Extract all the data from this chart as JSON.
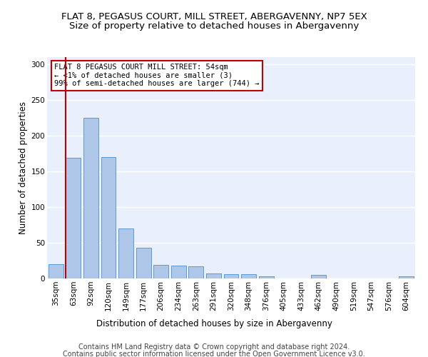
{
  "title": "FLAT 8, PEGASUS COURT, MILL STREET, ABERGAVENNY, NP7 5EX",
  "subtitle": "Size of property relative to detached houses in Abergavenny",
  "xlabel": "Distribution of detached houses by size in Abergavenny",
  "ylabel": "Number of detached properties",
  "categories": [
    "35sqm",
    "63sqm",
    "92sqm",
    "120sqm",
    "149sqm",
    "177sqm",
    "206sqm",
    "234sqm",
    "263sqm",
    "291sqm",
    "320sqm",
    "348sqm",
    "376sqm",
    "405sqm",
    "433sqm",
    "462sqm",
    "490sqm",
    "519sqm",
    "547sqm",
    "576sqm",
    "604sqm"
  ],
  "values": [
    20,
    169,
    225,
    170,
    70,
    43,
    19,
    18,
    17,
    7,
    6,
    6,
    3,
    0,
    0,
    5,
    0,
    0,
    0,
    0,
    3
  ],
  "bar_color": "#aec6e8",
  "bar_edge_color": "#5b9bd5",
  "highlight_color": "#c00000",
  "annotation_text": "FLAT 8 PEGASUS COURT MILL STREET: 54sqm\n← <1% of detached houses are smaller (3)\n99% of semi-detached houses are larger (744) →",
  "annotation_box_color": "#ffffff",
  "annotation_box_edge": "#c00000",
  "ylim": [
    0,
    310
  ],
  "yticks": [
    0,
    50,
    100,
    150,
    200,
    250,
    300
  ],
  "bg_color": "#eaf0fb",
  "grid_color": "#ffffff",
  "footer1": "Contains HM Land Registry data © Crown copyright and database right 2024.",
  "footer2": "Contains public sector information licensed under the Open Government Licence v3.0.",
  "title_fontsize": 9.5,
  "subtitle_fontsize": 9.5,
  "axis_label_fontsize": 8.5,
  "tick_fontsize": 7.5,
  "footer_fontsize": 7.0
}
